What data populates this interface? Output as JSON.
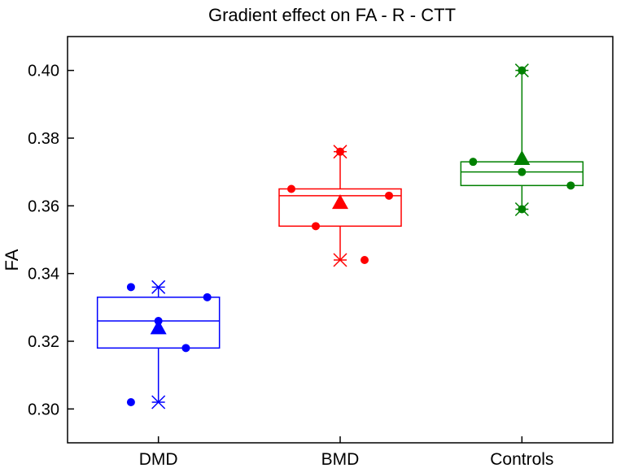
{
  "chart_data": {
    "type": "box",
    "title": "Gradient effect on FA - R - CTT",
    "xlabel": "",
    "ylabel": "FA",
    "ylim": [
      0.29,
      0.41
    ],
    "yticks": [
      0.3,
      0.32,
      0.34,
      0.36,
      0.38,
      0.4
    ],
    "ytick_labels": [
      "0.30",
      "0.32",
      "0.34",
      "0.36",
      "0.38",
      "0.40"
    ],
    "categories": [
      "DMD",
      "BMD",
      "Controls"
    ],
    "colors": [
      "#0000ff",
      "#ff0000",
      "#008000"
    ],
    "groups": [
      {
        "name": "DMD",
        "whisker_low": 0.302,
        "q1": 0.318,
        "median": 0.326,
        "q3": 0.333,
        "whisker_high": 0.336,
        "mean": 0.324,
        "points": [
          {
            "x": -0.45,
            "y": 0.336
          },
          {
            "x": -0.45,
            "y": 0.302
          },
          {
            "x": 0.0,
            "y": 0.326
          },
          {
            "x": 0.45,
            "y": 0.318
          },
          {
            "x": 0.8,
            "y": 0.333
          }
        ]
      },
      {
        "name": "BMD",
        "whisker_low": 0.344,
        "q1": 0.354,
        "median": 0.363,
        "q3": 0.365,
        "whisker_high": 0.376,
        "mean": 0.361,
        "points": [
          {
            "x": -0.8,
            "y": 0.365
          },
          {
            "x": -0.4,
            "y": 0.354
          },
          {
            "x": 0.0,
            "y": 0.376
          },
          {
            "x": 0.4,
            "y": 0.344
          },
          {
            "x": 0.8,
            "y": 0.363
          }
        ]
      },
      {
        "name": "Controls",
        "whisker_low": 0.359,
        "q1": 0.366,
        "median": 0.37,
        "q3": 0.373,
        "whisker_high": 0.4,
        "mean": 0.374,
        "points": [
          {
            "x": -0.8,
            "y": 0.373
          },
          {
            "x": 0.0,
            "y": 0.4
          },
          {
            "x": 0.0,
            "y": 0.37
          },
          {
            "x": 0.0,
            "y": 0.359
          },
          {
            "x": 0.8,
            "y": 0.366
          }
        ]
      }
    ]
  }
}
